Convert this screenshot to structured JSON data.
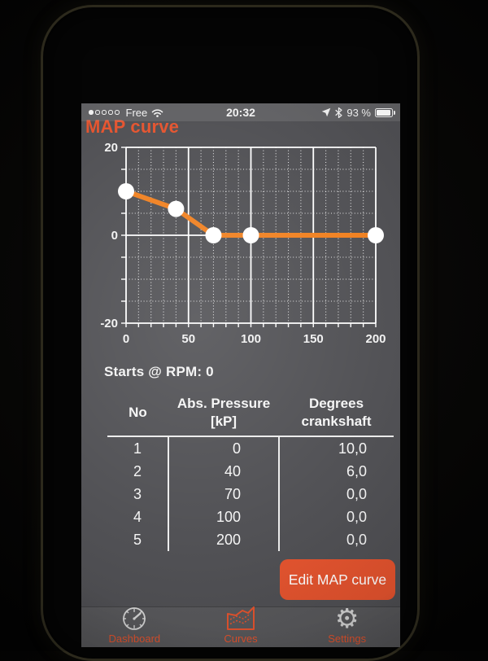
{
  "colors": {
    "accent": "#e4502a",
    "curve_orange": "#f07d1a",
    "grid_white": "#ffffff",
    "screen_bg": "#4c4c50",
    "text_white": "#f3f3f3"
  },
  "status_bar": {
    "signal": {
      "total_dots": 5,
      "filled_dots": 1
    },
    "carrier": "Free",
    "time": "20:32",
    "battery_percent": "93 %",
    "icons": [
      "signal-dots",
      "wifi-icon",
      "location-arrow-icon",
      "bluetooth-icon",
      "battery-icon"
    ]
  },
  "nav": {
    "title": "MAP curve"
  },
  "chart_data": {
    "type": "line",
    "title": "",
    "x": [
      0,
      40,
      70,
      100,
      200
    ],
    "y": [
      10,
      6,
      0,
      0,
      0
    ],
    "xlim": [
      0,
      200
    ],
    "ylim": [
      -20,
      20
    ],
    "x_ticks": [
      0,
      50,
      100,
      150,
      200
    ],
    "y_ticks": [
      20,
      0,
      -20
    ],
    "x_minor_step": 10,
    "y_minor_step": 5,
    "grid": true,
    "line_color": "#f07d1a",
    "point_color": "#ffffff",
    "grid_color": "#ffffff"
  },
  "starts_label": "Starts @ RPM: 0",
  "table": {
    "headers": [
      {
        "lines": [
          "No"
        ]
      },
      {
        "lines": [
          "Abs. Pressure",
          "[kP]"
        ]
      },
      {
        "lines": [
          "Degrees",
          "crankshaft"
        ]
      }
    ],
    "rows": [
      [
        "1",
        "0",
        "10,0"
      ],
      [
        "2",
        "40",
        "6,0"
      ],
      [
        "3",
        "70",
        "0,0"
      ],
      [
        "4",
        "100",
        "0,0"
      ],
      [
        "5",
        "200",
        "0,0"
      ]
    ]
  },
  "edit_button_label": "Edit MAP curve",
  "tab_bar": {
    "items": [
      {
        "label": "Dashboard",
        "icon": "gauge-icon",
        "active": false
      },
      {
        "label": "Curves",
        "icon": "curves-icon",
        "active": true
      },
      {
        "label": "Settings",
        "icon": "gear-icon",
        "active": false
      }
    ]
  }
}
